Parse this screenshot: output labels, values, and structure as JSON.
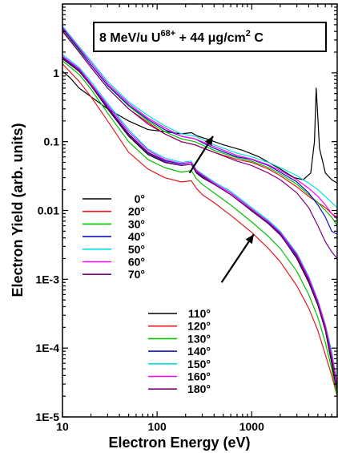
{
  "chart_data": {
    "type": "line",
    "title": {
      "prefix": "8 MeV/u U",
      "sup1": "68+",
      "mid": " + 44 ",
      "mu": "μ",
      "unit": "g/cm",
      "sup2": "2",
      "suffix": " C"
    },
    "xlabel": "Electron Energy (eV)",
    "ylabel": "Electron Yield (arb. units)",
    "x_scale": "log",
    "y_scale": "log",
    "xlim": [
      10,
      8000
    ],
    "ylim": [
      1e-05,
      10
    ],
    "x_ticks": [
      {
        "value": 10,
        "label": "10"
      },
      {
        "value": 100,
        "label": "100"
      },
      {
        "value": 1000,
        "label": "1000"
      }
    ],
    "y_ticks": [
      {
        "value": 1e-05,
        "label": "1E-5"
      },
      {
        "value": 0.0001,
        "label": "1E-4"
      },
      {
        "value": 0.001,
        "label": "1E-3"
      },
      {
        "value": 0.01,
        "label": "0.01"
      },
      {
        "value": 0.1,
        "label": "0.1"
      },
      {
        "value": 1,
        "label": "1"
      }
    ],
    "grid": false,
    "legend_groups": [
      {
        "placement": "middle-left",
        "entries": [
          0,
          1,
          2,
          3,
          4,
          5,
          6
        ]
      },
      {
        "placement": "bottom-center",
        "entries": [
          7,
          8,
          9,
          10,
          11,
          12,
          13
        ]
      }
    ],
    "series": [
      {
        "name": "0°",
        "color": "#000000",
        "x": [
          10,
          12,
          15,
          20,
          30,
          50,
          80,
          120,
          180,
          230,
          270,
          330,
          500,
          800,
          1200,
          2000,
          2800,
          3500,
          4200,
          4600,
          4800,
          5200,
          6000,
          7000,
          8000
        ],
        "y": [
          1.05,
          0.85,
          0.6,
          0.45,
          0.3,
          0.2,
          0.15,
          0.14,
          0.13,
          0.135,
          0.12,
          0.11,
          0.09,
          0.075,
          0.06,
          0.04,
          0.03,
          0.028,
          0.035,
          0.1,
          0.6,
          0.08,
          0.035,
          0.028,
          0.025
        ]
      },
      {
        "name": "20°",
        "color": "#e41a1c",
        "x": [
          10,
          15,
          20,
          30,
          50,
          80,
          120,
          180,
          250,
          400,
          700,
          1000,
          1500,
          2000,
          3000,
          4000,
          5000,
          6000,
          7000,
          8000
        ],
        "y": [
          4.2,
          2.0,
          1.2,
          0.6,
          0.3,
          0.19,
          0.13,
          0.1,
          0.09,
          0.07,
          0.055,
          0.05,
          0.04,
          0.032,
          0.022,
          0.016,
          0.013,
          0.011,
          0.009,
          0.008
        ]
      },
      {
        "name": "30°",
        "color": "#00c000",
        "x": [
          10,
          15,
          20,
          30,
          50,
          80,
          120,
          180,
          250,
          400,
          700,
          1000,
          1500,
          2000,
          3000,
          4000,
          5000,
          6000,
          7000,
          8000
        ],
        "y": [
          4.3,
          2.1,
          1.3,
          0.65,
          0.33,
          0.2,
          0.14,
          0.11,
          0.1,
          0.075,
          0.058,
          0.052,
          0.042,
          0.034,
          0.024,
          0.017,
          0.013,
          0.01,
          0.008,
          0.006
        ]
      },
      {
        "name": "40°",
        "color": "#1010c0",
        "x": [
          10,
          15,
          20,
          30,
          50,
          80,
          120,
          180,
          250,
          400,
          700,
          1000,
          1500,
          2000,
          3000,
          4000,
          5000,
          6000,
          7000,
          8000
        ],
        "y": [
          4.4,
          2.2,
          1.3,
          0.66,
          0.34,
          0.21,
          0.15,
          0.12,
          0.11,
          0.08,
          0.06,
          0.055,
          0.045,
          0.036,
          0.026,
          0.018,
          0.012,
          0.008,
          0.005,
          0.0045
        ]
      },
      {
        "name": "50°",
        "color": "#00e0e0",
        "x": [
          10,
          15,
          20,
          30,
          50,
          80,
          120,
          180,
          250,
          400,
          700,
          1000,
          1500,
          2000,
          3000,
          4000,
          5000,
          6000,
          7000,
          8000
        ],
        "y": [
          4.8,
          2.4,
          1.5,
          0.75,
          0.38,
          0.24,
          0.17,
          0.13,
          0.12,
          0.09,
          0.068,
          0.06,
          0.05,
          0.042,
          0.032,
          0.025,
          0.02,
          0.016,
          0.013,
          0.011
        ]
      },
      {
        "name": "60°",
        "color": "#ff00ff",
        "x": [
          10,
          15,
          20,
          30,
          50,
          80,
          120,
          180,
          250,
          400,
          700,
          1000,
          1500,
          2000,
          3000,
          4000,
          5000,
          6000,
          7000,
          8000
        ],
        "y": [
          4.6,
          2.3,
          1.4,
          0.7,
          0.36,
          0.22,
          0.16,
          0.12,
          0.11,
          0.085,
          0.063,
          0.056,
          0.046,
          0.038,
          0.028,
          0.021,
          0.016,
          0.012,
          0.009,
          0.0075
        ]
      },
      {
        "name": "70°",
        "color": "#800080",
        "x": [
          10,
          15,
          20,
          30,
          50,
          80,
          120,
          180,
          250,
          400,
          700,
          1000,
          1500,
          2000,
          3000,
          4000,
          5000,
          6000,
          7000,
          8000
        ],
        "y": [
          4.0,
          2.0,
          1.2,
          0.6,
          0.3,
          0.18,
          0.13,
          0.1,
          0.09,
          0.07,
          0.052,
          0.045,
          0.035,
          0.028,
          0.018,
          0.011,
          0.006,
          0.0035,
          0.0025,
          0.002
        ]
      },
      {
        "name": "110°",
        "color": "#000000",
        "x": [
          10,
          15,
          20,
          30,
          50,
          80,
          120,
          180,
          230,
          260,
          300,
          400,
          600,
          1000,
          1500,
          2000,
          3000,
          4000,
          5000,
          6000,
          7000,
          8000
        ],
        "y": [
          1.6,
          1.05,
          0.65,
          0.3,
          0.12,
          0.065,
          0.05,
          0.045,
          0.047,
          0.035,
          0.03,
          0.024,
          0.017,
          0.01,
          0.0065,
          0.0045,
          0.002,
          0.0009,
          0.00042,
          0.00018,
          6e-05,
          2e-05
        ]
      },
      {
        "name": "120°",
        "color": "#e41a1c",
        "x": [
          10,
          15,
          20,
          30,
          50,
          80,
          120,
          180,
          230,
          260,
          300,
          400,
          600,
          1000,
          1500,
          2000,
          3000,
          4000,
          5000,
          6000,
          7000,
          8000
        ],
        "y": [
          1.35,
          0.75,
          0.45,
          0.2,
          0.07,
          0.04,
          0.03,
          0.026,
          0.027,
          0.021,
          0.017,
          0.013,
          0.0085,
          0.0048,
          0.0028,
          0.0018,
          0.0008,
          0.00038,
          0.00018,
          8e-05,
          4e-05,
          2e-05
        ]
      },
      {
        "name": "130°",
        "color": "#00c000",
        "x": [
          10,
          15,
          20,
          30,
          50,
          80,
          120,
          180,
          230,
          260,
          300,
          400,
          600,
          1000,
          1500,
          2000,
          3000,
          4000,
          5000,
          6000,
          7000,
          8000
        ],
        "y": [
          1.5,
          0.95,
          0.58,
          0.26,
          0.1,
          0.055,
          0.042,
          0.036,
          0.038,
          0.029,
          0.024,
          0.018,
          0.012,
          0.0068,
          0.0042,
          0.0028,
          0.0013,
          0.0006,
          0.00028,
          0.00012,
          5e-05,
          2e-05
        ]
      },
      {
        "name": "140°",
        "color": "#1010c0",
        "x": [
          10,
          15,
          20,
          30,
          50,
          80,
          120,
          180,
          230,
          260,
          300,
          400,
          600,
          1000,
          1500,
          2000,
          3000,
          4000,
          5000,
          6000,
          7000,
          8000
        ],
        "y": [
          1.7,
          1.1,
          0.68,
          0.32,
          0.13,
          0.07,
          0.053,
          0.047,
          0.05,
          0.037,
          0.032,
          0.025,
          0.018,
          0.0105,
          0.0068,
          0.0047,
          0.0022,
          0.001,
          0.00045,
          0.0002,
          8e-05,
          3e-05
        ]
      },
      {
        "name": "150°",
        "color": "#00e0e0",
        "x": [
          10,
          15,
          20,
          30,
          50,
          80,
          120,
          180,
          230,
          260,
          300,
          400,
          600,
          1000,
          1500,
          2000,
          3000,
          4000,
          5000,
          6000,
          7000,
          8000
        ],
        "y": [
          1.85,
          1.2,
          0.75,
          0.36,
          0.15,
          0.078,
          0.058,
          0.05,
          0.052,
          0.039,
          0.034,
          0.026,
          0.019,
          0.011,
          0.0072,
          0.005,
          0.0024,
          0.0011,
          0.0005,
          0.00022,
          9e-05,
          3e-05
        ]
      },
      {
        "name": "160°",
        "color": "#ff00ff",
        "x": [
          10,
          15,
          20,
          30,
          50,
          80,
          120,
          180,
          230,
          260,
          300,
          400,
          600,
          1000,
          1500,
          2000,
          3000,
          4000,
          5000,
          6000,
          7000,
          8000
        ],
        "y": [
          1.75,
          1.15,
          0.7,
          0.34,
          0.14,
          0.075,
          0.055,
          0.048,
          0.05,
          0.038,
          0.033,
          0.025,
          0.018,
          0.0105,
          0.0069,
          0.0048,
          0.0023,
          0.00105,
          0.00048,
          0.00021,
          8e-05,
          3e-05
        ]
      },
      {
        "name": "180°",
        "color": "#800080",
        "x": [
          10,
          15,
          20,
          30,
          50,
          80,
          120,
          180,
          230,
          260,
          300,
          400,
          600,
          1000,
          1500,
          2000,
          3000,
          4000,
          5000,
          6000,
          7000,
          8000
        ],
        "y": [
          1.65,
          1.08,
          0.66,
          0.31,
          0.125,
          0.068,
          0.051,
          0.045,
          0.047,
          0.036,
          0.031,
          0.024,
          0.017,
          0.0098,
          0.0064,
          0.0044,
          0.0021,
          0.00095,
          0.00044,
          0.00019,
          7e-05,
          2.5e-05
        ]
      }
    ],
    "annotations": [
      {
        "type": "arrow",
        "from": [
          220,
          0.035
        ],
        "to": [
          390,
          0.12
        ]
      },
      {
        "type": "arrow",
        "from": [
          480,
          0.0009
        ],
        "to": [
          1050,
          0.0045
        ]
      }
    ]
  }
}
